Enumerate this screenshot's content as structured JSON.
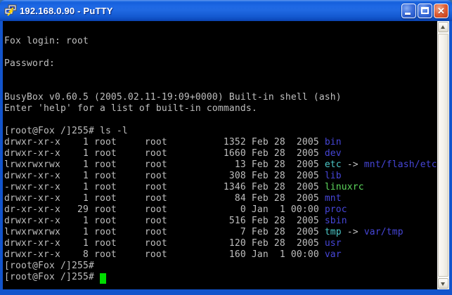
{
  "window": {
    "title": "192.168.0.90 - PuTTY",
    "icons": {
      "app": "putty-two-computers",
      "minimize": "minimize-dash",
      "maximize": "maximize-square",
      "close": "close-x",
      "scroll_up": "up-arrow",
      "scroll_down": "down-arrow"
    }
  },
  "colors": {
    "titlebar_blue": "#1E68E4",
    "frame_blue": "#1254CC",
    "terminal_bg": "#000000",
    "foreground": "#BFBFBF",
    "directory_blue": "#4646D8",
    "symlink_cyan": "#4CC8C8",
    "executable_green": "#5CD65C",
    "cursor_green": "#00DD00",
    "close_button_red": "#DE5E35"
  },
  "terminal": {
    "prompt": "[root@Fox /]255#",
    "lines": [
      {
        "segments": []
      },
      {
        "segments": [
          {
            "t": "Fox login: root",
            "c": "fg"
          }
        ]
      },
      {
        "segments": []
      },
      {
        "segments": [
          {
            "t": "Password:",
            "c": "fg"
          }
        ]
      },
      {
        "segments": []
      },
      {
        "segments": []
      },
      {
        "segments": [
          {
            "t": "BusyBox v0.60.5 (2005.02.11-19:09+0000) Built-in shell (ash)",
            "c": "fg"
          }
        ]
      },
      {
        "segments": [
          {
            "t": "Enter 'help' for a list of built-in commands.",
            "c": "fg"
          }
        ]
      },
      {
        "segments": []
      },
      {
        "segments": [
          {
            "t": "[root@Fox /]255# ls -l",
            "c": "fg"
          }
        ]
      },
      {
        "segments": [
          {
            "t": "drwxr-xr-x    1 root     root          1352 Feb 28  2005 ",
            "c": "fg"
          },
          {
            "t": "bin",
            "c": "dir"
          }
        ]
      },
      {
        "segments": [
          {
            "t": "drwxr-xr-x    1 root     root          1660 Feb 28  2005 ",
            "c": "fg"
          },
          {
            "t": "dev",
            "c": "dir"
          }
        ]
      },
      {
        "segments": [
          {
            "t": "lrwxrwxrwx    1 root     root            13 Feb 28  2005 ",
            "c": "fg"
          },
          {
            "t": "etc",
            "c": "link"
          },
          {
            "t": " -> ",
            "c": "fg"
          },
          {
            "t": "mnt/flash/etc",
            "c": "dir"
          }
        ]
      },
      {
        "segments": [
          {
            "t": "drwxr-xr-x    1 root     root           308 Feb 28  2005 ",
            "c": "fg"
          },
          {
            "t": "lib",
            "c": "dir"
          }
        ]
      },
      {
        "segments": [
          {
            "t": "-rwxr-xr-x    1 root     root          1346 Feb 28  2005 ",
            "c": "fg"
          },
          {
            "t": "linuxrc",
            "c": "exec"
          }
        ]
      },
      {
        "segments": [
          {
            "t": "drwxr-xr-x    1 root     root            84 Feb 28  2005 ",
            "c": "fg"
          },
          {
            "t": "mnt",
            "c": "dir"
          }
        ]
      },
      {
        "segments": [
          {
            "t": "dr-xr-xr-x   29 root     root             0 Jan  1 00:00 ",
            "c": "fg"
          },
          {
            "t": "proc",
            "c": "dir"
          }
        ]
      },
      {
        "segments": [
          {
            "t": "drwxr-xr-x    1 root     root           516 Feb 28  2005 ",
            "c": "fg"
          },
          {
            "t": "sbin",
            "c": "dir"
          }
        ]
      },
      {
        "segments": [
          {
            "t": "lrwxrwxrwx    1 root     root             7 Feb 28  2005 ",
            "c": "fg"
          },
          {
            "t": "tmp",
            "c": "link"
          },
          {
            "t": " -> ",
            "c": "fg"
          },
          {
            "t": "var/tmp",
            "c": "dir"
          }
        ]
      },
      {
        "segments": [
          {
            "t": "drwxr-xr-x    1 root     root           120 Feb 28  2005 ",
            "c": "fg"
          },
          {
            "t": "usr",
            "c": "dir"
          }
        ]
      },
      {
        "segments": [
          {
            "t": "drwxr-xr-x    8 root     root           160 Jan  1 00:00 ",
            "c": "fg"
          },
          {
            "t": "var",
            "c": "dir"
          }
        ]
      },
      {
        "segments": [
          {
            "t": "[root@Fox /]255#",
            "c": "fg"
          }
        ]
      },
      {
        "segments": [
          {
            "t": "[root@Fox /]255# ",
            "c": "fg"
          }
        ],
        "cursor": true
      }
    ]
  }
}
